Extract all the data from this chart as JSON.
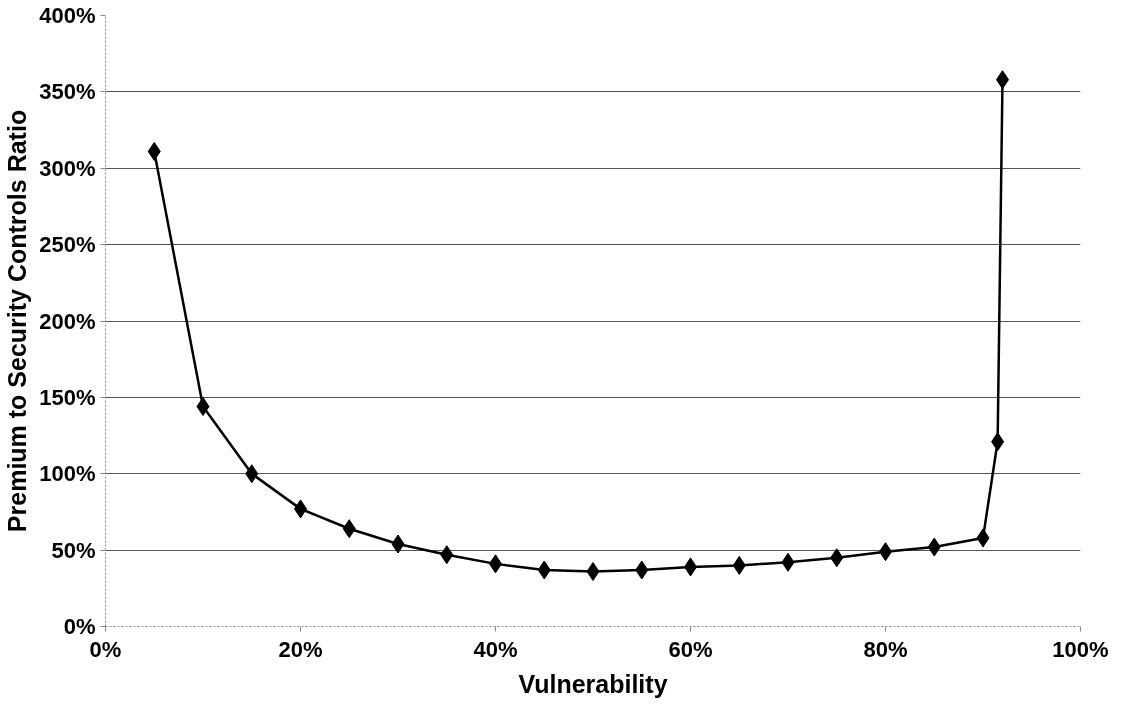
{
  "chart_data": {
    "type": "line",
    "xlabel": "Vulnerability",
    "ylabel": "Premium to Security Controls Ratio",
    "marker": "diamond",
    "line_style": "solid",
    "grid": "y",
    "x": [
      5,
      10,
      15,
      20,
      25,
      30,
      35,
      40,
      45,
      50,
      55,
      60,
      65,
      70,
      75,
      80,
      85,
      90,
      91.5,
      92
    ],
    "series": [
      {
        "color": "#000000",
        "values": [
          311,
          144,
          100,
          77,
          64,
          54,
          47,
          41,
          37,
          36,
          37,
          39,
          40,
          42,
          45,
          49,
          52,
          58,
          121,
          358
        ]
      }
    ],
    "xlim": [
      0,
      100
    ],
    "ylim": [
      0,
      400
    ],
    "xticks": [
      {
        "value": 0,
        "label": "0%"
      },
      {
        "value": 20,
        "label": "20%"
      },
      {
        "value": 40,
        "label": "40%"
      },
      {
        "value": 60,
        "label": "60%"
      },
      {
        "value": 80,
        "label": "80%"
      },
      {
        "value": 100,
        "label": "100%"
      }
    ],
    "yticks": [
      {
        "value": 0,
        "label": "0%"
      },
      {
        "value": 50,
        "label": "50%"
      },
      {
        "value": 100,
        "label": "100%"
      },
      {
        "value": 150,
        "label": "150%"
      },
      {
        "value": 200,
        "label": "200%"
      },
      {
        "value": 250,
        "label": "250%"
      },
      {
        "value": 300,
        "label": "300%"
      },
      {
        "value": 350,
        "label": "350%"
      },
      {
        "value": 400,
        "label": "400%"
      }
    ]
  }
}
